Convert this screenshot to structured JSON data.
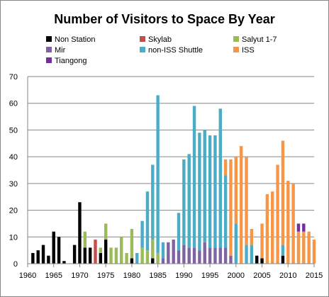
{
  "chart_data": {
    "type": "bar",
    "stacked": true,
    "title": "Number of Visitors to Space By Year",
    "xlabel": "",
    "ylabel": "",
    "xlim": [
      1960,
      2015
    ],
    "ylim": [
      0,
      70
    ],
    "xticks": [
      "1960",
      "1965",
      "1970",
      "1975",
      "1980",
      "1985",
      "1990",
      "1995",
      "2000",
      "2005",
      "2010",
      "2015"
    ],
    "yticks": [
      "0",
      "10",
      "20",
      "30",
      "40",
      "50",
      "60",
      "70"
    ],
    "grid": "horizontal",
    "legend_position": "top",
    "categories": [
      1961,
      1962,
      1963,
      1964,
      1965,
      1966,
      1967,
      1968,
      1969,
      1970,
      1971,
      1972,
      1973,
      1974,
      1975,
      1976,
      1977,
      1978,
      1979,
      1980,
      1981,
      1982,
      1983,
      1984,
      1985,
      1986,
      1987,
      1988,
      1989,
      1990,
      1991,
      1992,
      1993,
      1994,
      1995,
      1996,
      1997,
      1998,
      1999,
      2000,
      2001,
      2002,
      2003,
      2004,
      2005,
      2006,
      2007,
      2008,
      2009,
      2010,
      2011,
      2012,
      2013,
      2014,
      2015
    ],
    "series": [
      {
        "name": "Non Station",
        "color": "#000000",
        "values": [
          4,
          5,
          7,
          3,
          12,
          10,
          1,
          0,
          7,
          23,
          6,
          6,
          0,
          4,
          9,
          0,
          0,
          0,
          0,
          2,
          0,
          0,
          0,
          2,
          0,
          0,
          0,
          0,
          0,
          0,
          0,
          0,
          0,
          0,
          0,
          0,
          0,
          0,
          0,
          0,
          0,
          0,
          0,
          3,
          2,
          0,
          0,
          0,
          3,
          0,
          0,
          0,
          0,
          0,
          0
        ]
      },
      {
        "name": "Skylab",
        "color": "#C0504D",
        "values": [
          0,
          0,
          0,
          0,
          0,
          0,
          0,
          0,
          0,
          0,
          0,
          0,
          9,
          0,
          0,
          0,
          0,
          0,
          0,
          0,
          0,
          0,
          0,
          0,
          0,
          0,
          0,
          0,
          0,
          0,
          0,
          0,
          0,
          0,
          0,
          0,
          0,
          0,
          0,
          0,
          0,
          0,
          0,
          0,
          0,
          0,
          0,
          0,
          0,
          0,
          0,
          0,
          0,
          0,
          0
        ]
      },
      {
        "name": "Salyut 1-7",
        "color": "#9BBB59",
        "values": [
          0,
          0,
          0,
          0,
          0,
          0,
          0,
          0,
          0,
          0,
          6,
          0,
          0,
          2,
          6,
          6,
          6,
          10,
          4,
          11,
          0,
          6,
          5,
          7,
          4,
          0,
          0,
          0,
          0,
          0,
          0,
          0,
          0,
          0,
          0,
          0,
          0,
          0,
          0,
          0,
          0,
          0,
          0,
          0,
          0,
          0,
          0,
          0,
          0,
          0,
          0,
          0,
          0,
          0,
          0
        ]
      },
      {
        "name": "Mir",
        "color": "#8064A2",
        "values": [
          0,
          0,
          0,
          0,
          0,
          0,
          0,
          0,
          0,
          0,
          0,
          0,
          0,
          0,
          0,
          0,
          0,
          0,
          0,
          0,
          0,
          0,
          0,
          0,
          0,
          2,
          8,
          9,
          5,
          7,
          6,
          6,
          5,
          8,
          6,
          6,
          6,
          6,
          3,
          0,
          0,
          0,
          0,
          0,
          0,
          0,
          0,
          0,
          0,
          0,
          0,
          0,
          0,
          0,
          0
        ]
      },
      {
        "name": "non-ISS Shuttle",
        "color": "#4BACC6",
        "values": [
          0,
          0,
          0,
          0,
          0,
          0,
          0,
          0,
          0,
          0,
          0,
          0,
          0,
          0,
          0,
          0,
          0,
          0,
          0,
          0,
          4,
          10,
          22,
          28,
          59,
          6,
          0,
          0,
          14,
          32,
          35,
          53,
          44,
          42,
          42,
          42,
          52,
          27,
          0,
          15,
          0,
          7,
          7,
          0,
          0,
          0,
          0,
          0,
          4,
          0,
          0,
          0,
          0,
          0,
          0
        ]
      },
      {
        "name": "ISS",
        "color": "#F79646",
        "values": [
          0,
          0,
          0,
          0,
          0,
          0,
          0,
          0,
          0,
          0,
          0,
          0,
          0,
          0,
          0,
          0,
          0,
          0,
          0,
          0,
          0,
          0,
          0,
          0,
          0,
          0,
          0,
          0,
          0,
          0,
          0,
          0,
          0,
          0,
          0,
          0,
          0,
          6,
          36,
          25,
          44,
          33,
          6,
          0,
          13,
          26,
          27,
          37,
          39,
          31,
          30,
          12,
          12,
          12,
          9
        ]
      },
      {
        "name": "Tiangong",
        "color": "#7030A0",
        "values": [
          0,
          0,
          0,
          0,
          0,
          0,
          0,
          0,
          0,
          0,
          0,
          0,
          0,
          0,
          0,
          0,
          0,
          0,
          0,
          0,
          0,
          0,
          0,
          0,
          0,
          0,
          0,
          0,
          0,
          0,
          0,
          0,
          0,
          0,
          0,
          0,
          0,
          0,
          0,
          0,
          0,
          0,
          0,
          0,
          0,
          0,
          0,
          0,
          0,
          0,
          0,
          3,
          3,
          0,
          0
        ]
      }
    ]
  }
}
